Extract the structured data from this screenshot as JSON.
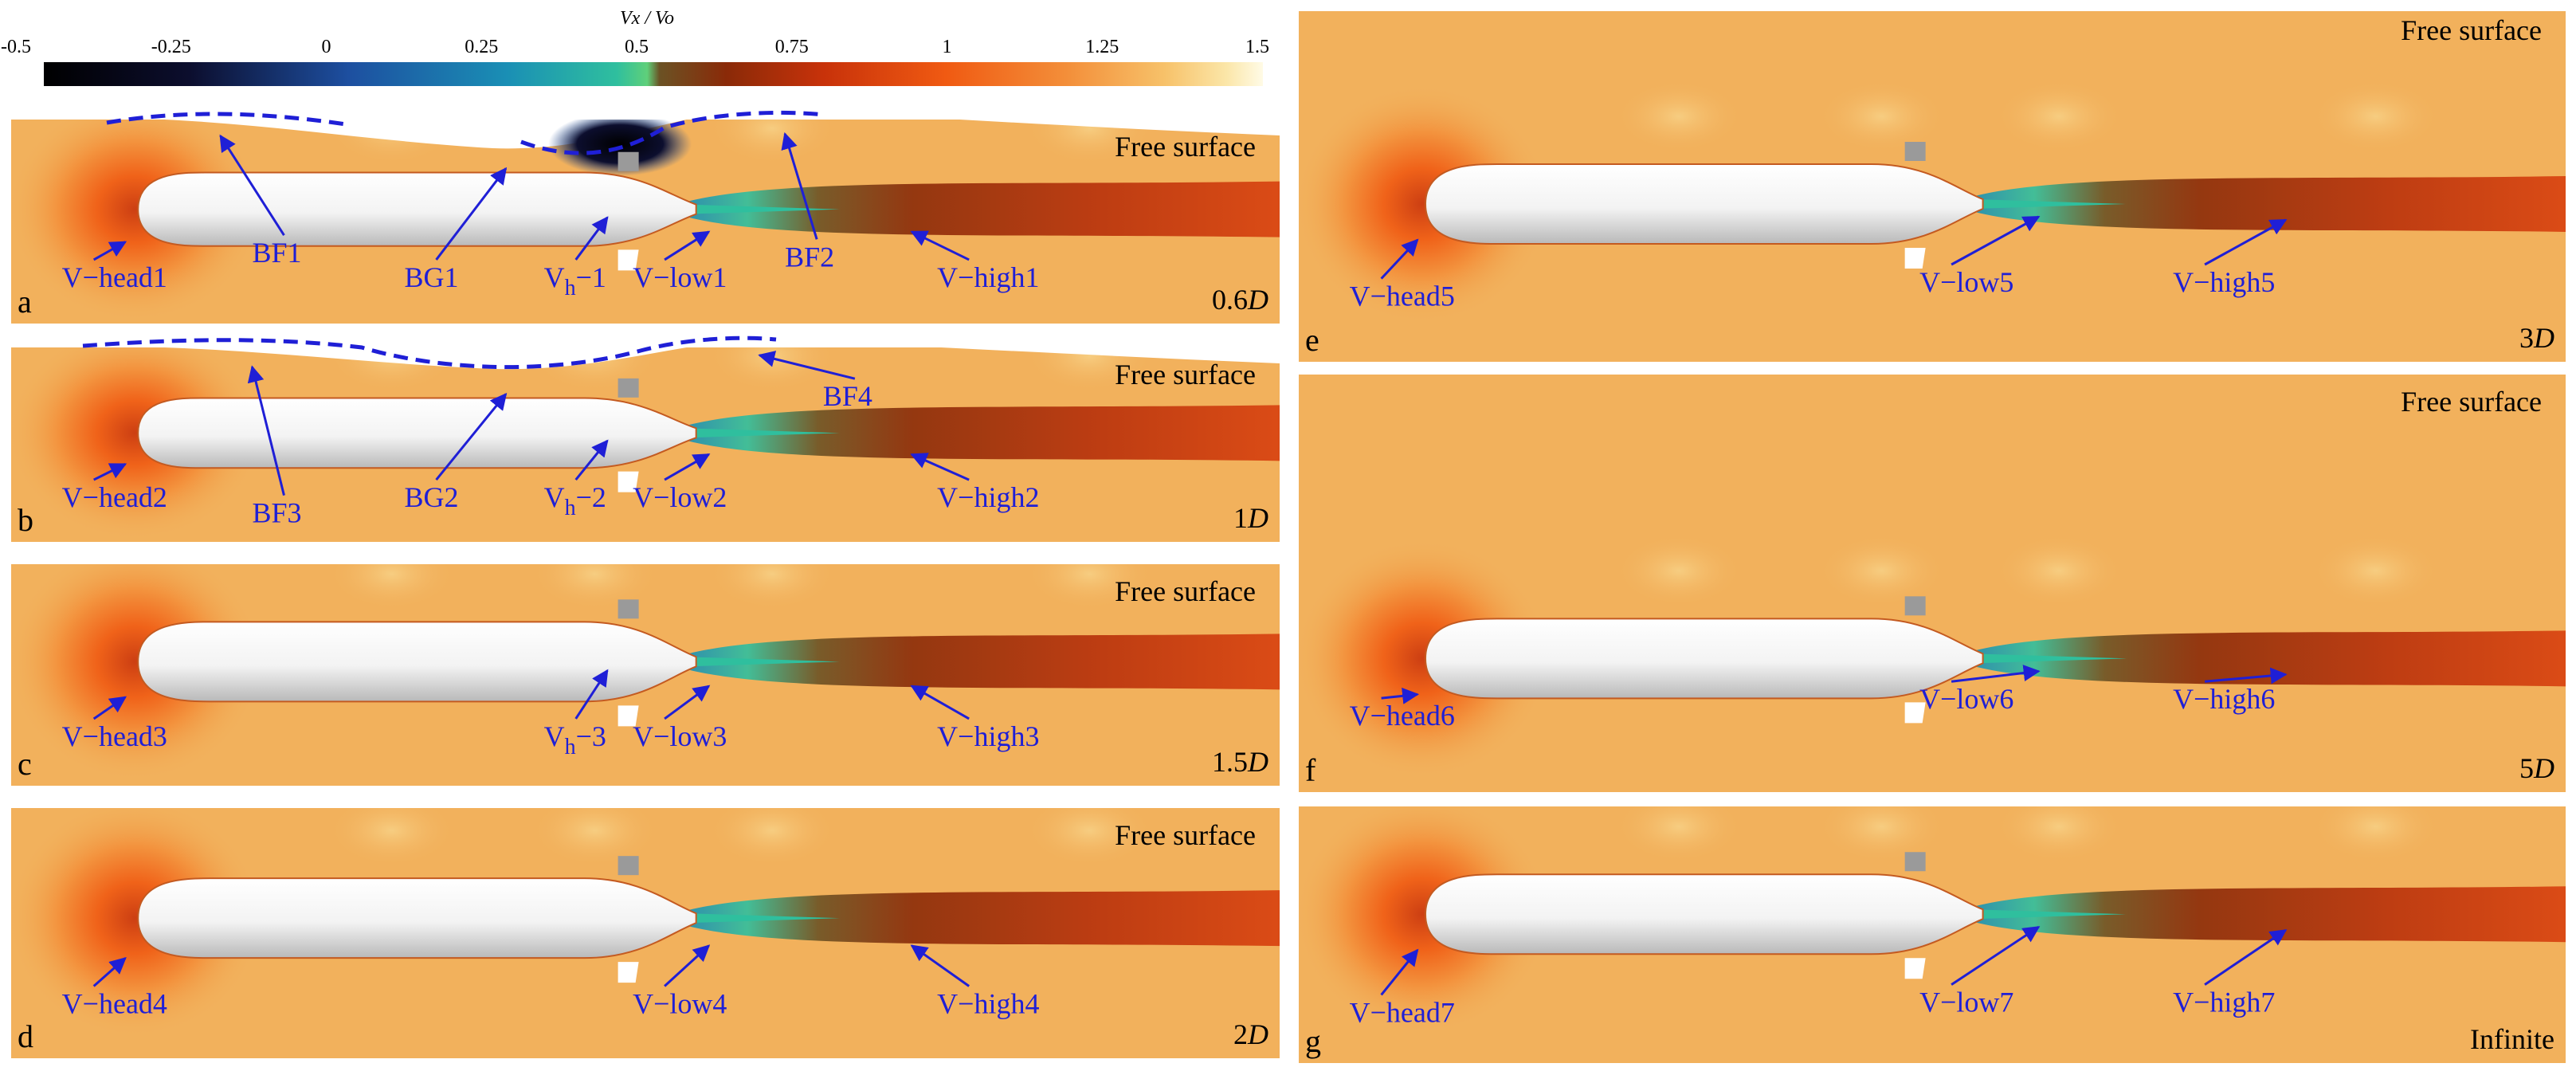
{
  "colorbar": {
    "title": "Vx / Vo",
    "ticks": [
      "-0.5",
      "-0.25",
      "0",
      "0.25",
      "0.5",
      "0.75",
      "1",
      "1.25",
      "1.5"
    ],
    "colors": [
      "#000000",
      "#0c0e2e",
      "#1d4fa0",
      "#1a8fb5",
      "#2fbf9e",
      "#5fd07a",
      "#6b5224",
      "#8a2a08",
      "#c8320a",
      "#f05a12",
      "#f38f3a",
      "#f7c26a",
      "#fbe6a8",
      "#fffbe6"
    ]
  },
  "panels": [
    {
      "letter": "a",
      "distance": "0.6D",
      "free_surface": "Free surface",
      "labels": [
        {
          "text": "V−head1",
          "sub": false
        },
        {
          "text": "BF1",
          "sub": false
        },
        {
          "text": "BG1",
          "sub": false
        },
        {
          "text": "V",
          "sub": "h",
          "tail": "−1"
        },
        {
          "text": "V−low1",
          "sub": false
        },
        {
          "text": "BF2",
          "sub": false
        },
        {
          "text": "V−high1",
          "sub": false
        }
      ]
    },
    {
      "letter": "b",
      "distance": "1D",
      "free_surface": "Free surface",
      "labels": [
        {
          "text": "V−head2",
          "sub": false
        },
        {
          "text": "BF3",
          "sub": false
        },
        {
          "text": "BG2",
          "sub": false
        },
        {
          "text": "V",
          "sub": "h",
          "tail": "−2"
        },
        {
          "text": "V−low2",
          "sub": false
        },
        {
          "text": "BF4",
          "sub": false
        },
        {
          "text": "V−high2",
          "sub": false
        }
      ]
    },
    {
      "letter": "c",
      "distance": "1.5D",
      "free_surface": "Free surface",
      "labels": [
        {
          "text": "V−head3",
          "sub": false
        },
        {
          "text": "V",
          "sub": "h",
          "tail": "−3"
        },
        {
          "text": "V−low3",
          "sub": false
        },
        {
          "text": "V−high3",
          "sub": false
        }
      ]
    },
    {
      "letter": "d",
      "distance": "2D",
      "free_surface": "Free surface",
      "labels": [
        {
          "text": "V−head4",
          "sub": false
        },
        {
          "text": "V−low4",
          "sub": false
        },
        {
          "text": "V−high4",
          "sub": false
        }
      ]
    },
    {
      "letter": "e",
      "distance": "3D",
      "free_surface": "Free surface",
      "labels": [
        {
          "text": "V−head5",
          "sub": false
        },
        {
          "text": "V−low5",
          "sub": false
        },
        {
          "text": "V−high5",
          "sub": false
        }
      ]
    },
    {
      "letter": "f",
      "distance": "5D",
      "free_surface": "Free surface",
      "labels": [
        {
          "text": "V−head6",
          "sub": false
        },
        {
          "text": "V−low6",
          "sub": false
        },
        {
          "text": "V−high6",
          "sub": false
        }
      ]
    },
    {
      "letter": "g",
      "distance": "Infinite",
      "free_surface": "",
      "labels": [
        {
          "text": "V−head7",
          "sub": false
        },
        {
          "text": "V−low7",
          "sub": false
        },
        {
          "text": "V−high7",
          "sub": false
        }
      ]
    }
  ],
  "colors": {
    "annotation": "#1f1fd6",
    "background_field": "#f2b15c",
    "wake": "#c8320a",
    "hull": "#f4f4f4"
  }
}
